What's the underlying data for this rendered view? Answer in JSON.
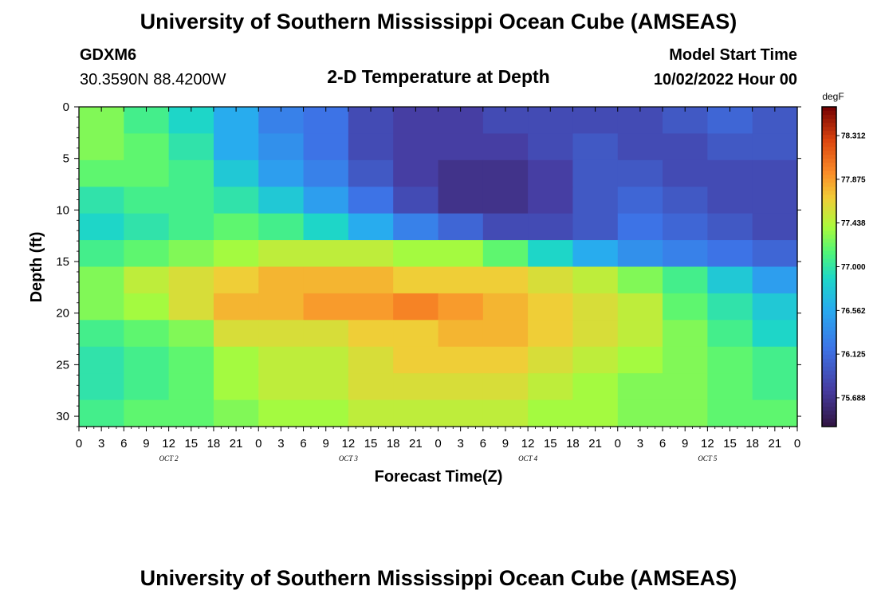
{
  "page": {
    "title_top": "University of Southern Mississippi Ocean Cube (AMSEAS)",
    "title_bottom": "University of Southern Mississippi Ocean Cube (AMSEAS)",
    "station": "GDXM6",
    "coords": "30.3590N  88.4200W",
    "plot_title": "2-D Temperature at Depth",
    "model_start_label": "Model Start Time",
    "model_start_value": "10/02/2022 Hour 00"
  },
  "chart_data": {
    "type": "heatmap",
    "title": "2-D Temperature at Depth",
    "xlabel": "Forecast Time(Z)",
    "ylabel": "Depth (ft)",
    "x": [
      0,
      3,
      6,
      9,
      12,
      15,
      18,
      21,
      24,
      27,
      30,
      33,
      36,
      39,
      42,
      45,
      48,
      51,
      54,
      57,
      60,
      63,
      66,
      69,
      72,
      75,
      78,
      81,
      84,
      87,
      90,
      93,
      96
    ],
    "x_tick_labels": [
      "0",
      "3",
      "6",
      "9",
      "12",
      "15",
      "18",
      "21",
      "0",
      "3",
      "6",
      "9",
      "12",
      "15",
      "18",
      "21",
      "0",
      "3",
      "6",
      "9",
      "12",
      "15",
      "18",
      "21",
      "0",
      "3",
      "6",
      "9",
      "12",
      "15",
      "18",
      "21",
      "0"
    ],
    "x_day_labels": [
      {
        "hour": 12,
        "label": "OCT 2"
      },
      {
        "hour": 36,
        "label": "OCT 3"
      },
      {
        "hour": 60,
        "label": "OCT 4"
      },
      {
        "hour": 84,
        "label": "OCT 5"
      }
    ],
    "xlim": [
      0,
      96
    ],
    "y": [
      0,
      5,
      10,
      15,
      20,
      25,
      30
    ],
    "y_tick_labels": [
      "0",
      "5",
      "10",
      "15",
      "20",
      "25",
      "30"
    ],
    "ylim": [
      0,
      31
    ],
    "y_inverted": true,
    "values_degF": [
      [
        77.3,
        77.1,
        76.9,
        76.6,
        76.3,
        76.2,
        75.9,
        75.8,
        75.8,
        75.9,
        75.9,
        75.9,
        75.9,
        76.0,
        76.1,
        76.0
      ],
      [
        77.3,
        77.2,
        77.0,
        76.6,
        76.4,
        76.2,
        75.9,
        75.8,
        75.8,
        75.8,
        75.9,
        76.0,
        75.9,
        75.9,
        76.0,
        76.0
      ],
      [
        77.2,
        77.2,
        77.1,
        76.8,
        76.5,
        76.3,
        76.0,
        75.8,
        75.7,
        75.7,
        75.8,
        76.0,
        76.0,
        75.9,
        75.9,
        75.9
      ],
      [
        77.0,
        77.1,
        77.1,
        77.0,
        76.8,
        76.5,
        76.2,
        75.9,
        75.7,
        75.7,
        75.8,
        76.0,
        76.1,
        76.0,
        75.9,
        75.9
      ],
      [
        76.9,
        77.0,
        77.1,
        77.2,
        77.1,
        76.9,
        76.6,
        76.3,
        76.1,
        75.9,
        75.9,
        76.0,
        76.2,
        76.1,
        76.0,
        75.9
      ],
      [
        77.1,
        77.2,
        77.3,
        77.4,
        77.5,
        77.5,
        77.5,
        77.4,
        77.4,
        77.2,
        76.9,
        76.6,
        76.4,
        76.3,
        76.2,
        76.1
      ],
      [
        77.3,
        77.5,
        77.6,
        77.7,
        77.8,
        77.8,
        77.8,
        77.7,
        77.7,
        77.7,
        77.6,
        77.5,
        77.3,
        77.1,
        76.8,
        76.5
      ],
      [
        77.3,
        77.4,
        77.6,
        77.8,
        77.8,
        77.9,
        77.9,
        78.0,
        77.9,
        77.8,
        77.7,
        77.6,
        77.5,
        77.2,
        77.0,
        76.8
      ],
      [
        77.1,
        77.2,
        77.3,
        77.6,
        77.6,
        77.6,
        77.7,
        77.7,
        77.8,
        77.8,
        77.7,
        77.6,
        77.5,
        77.3,
        77.1,
        76.9
      ],
      [
        77.0,
        77.1,
        77.2,
        77.4,
        77.5,
        77.5,
        77.6,
        77.7,
        77.7,
        77.7,
        77.6,
        77.5,
        77.4,
        77.3,
        77.2,
        77.1
      ],
      [
        77.0,
        77.1,
        77.2,
        77.4,
        77.5,
        77.5,
        77.6,
        77.6,
        77.6,
        77.6,
        77.5,
        77.4,
        77.3,
        77.3,
        77.2,
        77.1
      ],
      [
        77.1,
        77.2,
        77.2,
        77.3,
        77.4,
        77.4,
        77.5,
        77.5,
        77.5,
        77.5,
        77.4,
        77.4,
        77.3,
        77.3,
        77.2,
        77.2
      ]
    ],
    "colorbar": {
      "label": "degF",
      "ticks": [
        "78.312",
        "77.875",
        "77.438",
        "77.000",
        "76.562",
        "76.125",
        "75.688"
      ],
      "range": [
        75.4,
        78.6
      ]
    },
    "grid": false,
    "legend": "colorbar-right"
  }
}
